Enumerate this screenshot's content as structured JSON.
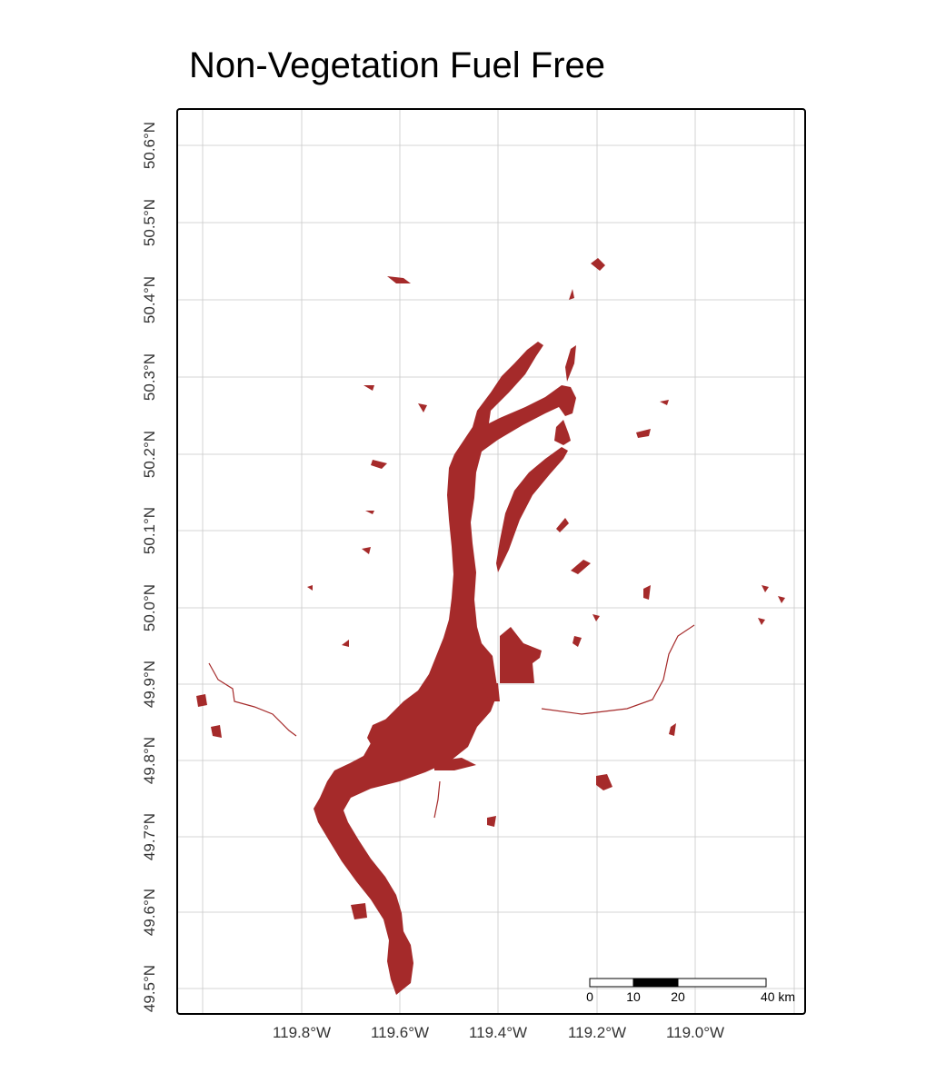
{
  "title": "Non-Vegetation Fuel Free",
  "colors": {
    "fill": "#a52a2a",
    "grid": "#c8c8c8",
    "frame": "#000000"
  },
  "axes": {
    "x_ticks": [
      "119.8°W",
      "119.6°W",
      "119.4°W",
      "119.2°W",
      "119.0°W"
    ],
    "y_ticks": [
      "50.6°N",
      "50.5°N",
      "50.4°N",
      "50.3°N",
      "50.2°N",
      "50.1°N",
      "50.0°N",
      "49.9°N",
      "49.8°N",
      "49.7°N",
      "49.6°N",
      "49.5°N"
    ]
  },
  "scale_bar": {
    "labels": [
      "0",
      "10",
      "20",
      "40 km"
    ]
  }
}
